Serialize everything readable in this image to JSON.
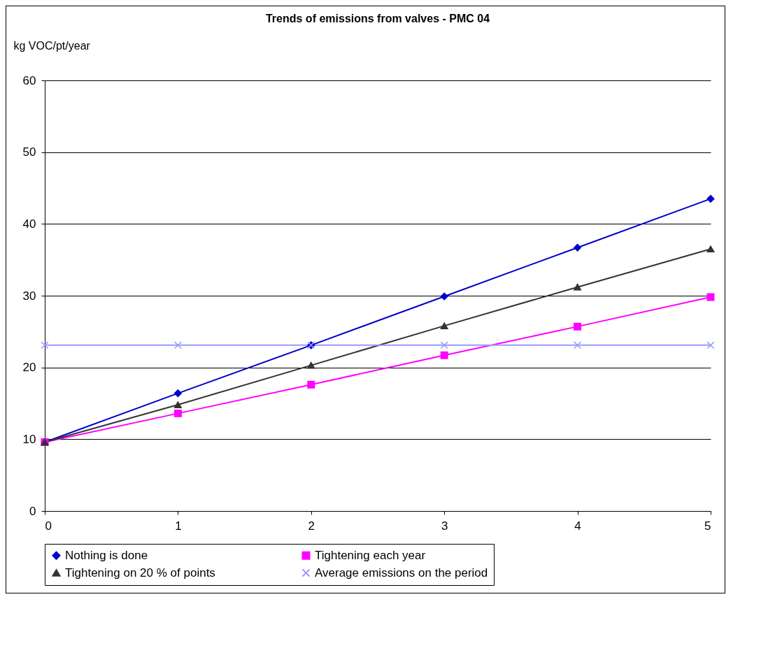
{
  "chart_data": {
    "type": "line",
    "title": "Trends of emissions from valves - PMC 04",
    "ylabel": "kg VOC/pt/year",
    "x": [
      0,
      1,
      2,
      3,
      4,
      5
    ],
    "xlim": [
      0,
      5
    ],
    "xticks": [
      0,
      1,
      2,
      3,
      4,
      5
    ],
    "ylim": [
      0,
      60
    ],
    "yticks": [
      0,
      10,
      20,
      30,
      40,
      50,
      60
    ],
    "grid": "y",
    "legend": "bottom",
    "series": [
      {
        "name": "Nothing is done",
        "color": "#0000cc",
        "marker": "diamond",
        "values": [
          9.6,
          16.4,
          23.1,
          29.9,
          36.7,
          43.5
        ]
      },
      {
        "name": "Tightening each year",
        "color": "#ff00ff",
        "marker": "square",
        "values": [
          9.6,
          13.6,
          17.6,
          21.7,
          25.7,
          29.8
        ]
      },
      {
        "name": "Tightening on 20 % of points",
        "color": "#333333",
        "marker": "triangle",
        "values": [
          9.6,
          14.8,
          20.3,
          25.8,
          31.2,
          36.5
        ]
      },
      {
        "name": "Average emissions on the period",
        "color": "#9999ff",
        "marker": "cross",
        "values": [
          23.1,
          23.1,
          23.1,
          23.1,
          23.1,
          23.1
        ]
      }
    ]
  }
}
